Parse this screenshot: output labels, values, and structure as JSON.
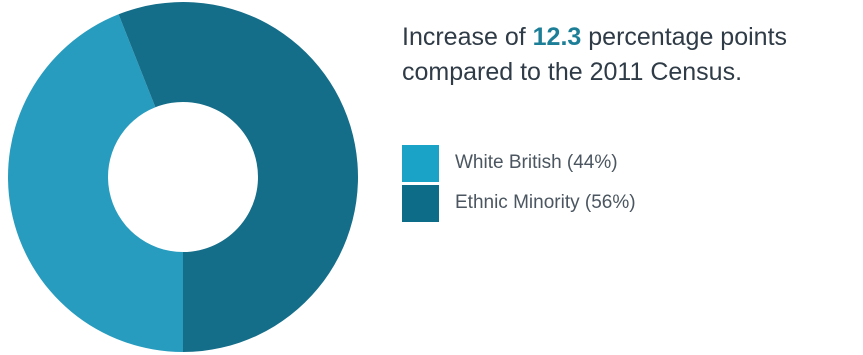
{
  "headline": {
    "prefix": "Increase of ",
    "highlight": "12.3",
    "suffix_line1": " percentage points",
    "line2": "compared to the 2011 Census."
  },
  "colors": {
    "white_british": "#279cbf",
    "ethnic_minority": "#146d89",
    "highlight": "#1d7f97"
  },
  "legend": [
    {
      "label": "White British (44%)",
      "color": "#1ba3c7"
    },
    {
      "label": "Ethnic Minority (56%)",
      "color": "#0d6c88"
    }
  ],
  "chart_data": {
    "type": "pie",
    "categories": [
      "White British",
      "Ethnic Minority"
    ],
    "values": [
      44,
      56
    ],
    "unit": "%",
    "legend_position": "right"
  }
}
